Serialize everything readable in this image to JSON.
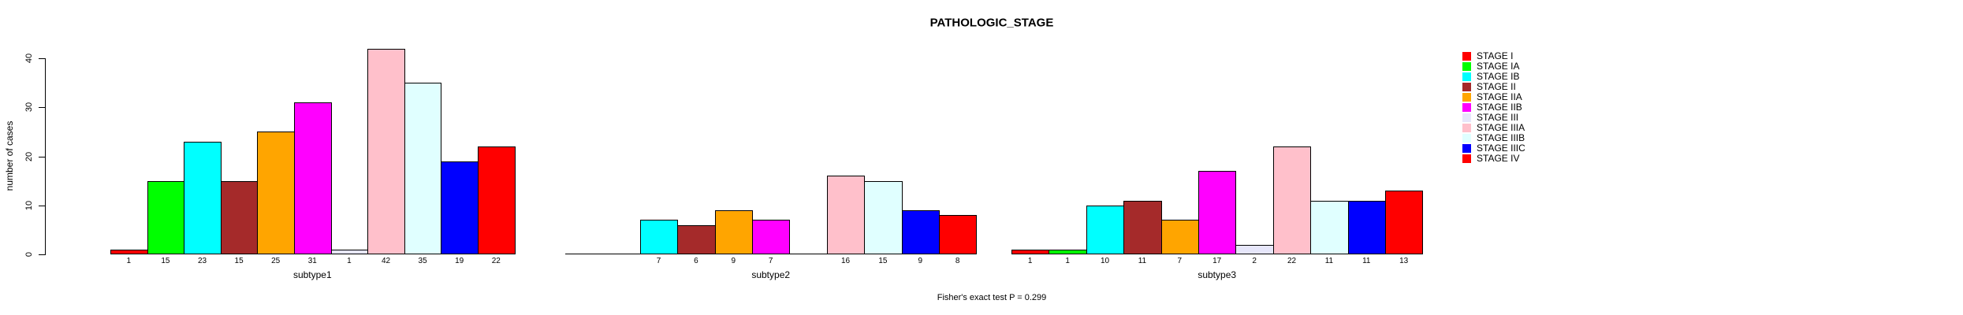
{
  "title": "PATHOLOGIC_STAGE",
  "footer": "Fisher's exact test P = 0.299",
  "chart_data": {
    "type": "bar",
    "title": "PATHOLOGIC_STAGE",
    "ylabel": "number of cases",
    "xlabel": "",
    "ylim": [
      0,
      40
    ],
    "yticks": [
      0,
      10,
      20,
      30,
      40
    ],
    "grid": false,
    "legend_position": "right",
    "annotation": "Fisher's exact test P = 0.299",
    "stages": [
      {
        "label": "STAGE I",
        "color": "#FF0000"
      },
      {
        "label": "STAGE IA",
        "color": "#00FF00"
      },
      {
        "label": "STAGE IB",
        "color": "#00FFFF"
      },
      {
        "label": "STAGE II",
        "color": "#A52A2A"
      },
      {
        "label": "STAGE IIA",
        "color": "#FFA500"
      },
      {
        "label": "STAGE IIB",
        "color": "#FF00FF"
      },
      {
        "label": "STAGE III",
        "color": "#E6E6FA"
      },
      {
        "label": "STAGE IIIA",
        "color": "#FFC0CB"
      },
      {
        "label": "STAGE IIIB",
        "color": "#E0FFFF"
      },
      {
        "label": "STAGE IIIC",
        "color": "#0000FF"
      },
      {
        "label": "STAGE IV",
        "color": "#FF0000"
      }
    ],
    "categories": [
      "subtype1",
      "subtype2",
      "subtype3"
    ],
    "series_note": "groups[i].values follow the order of stages[]; 0 means no visible bar and no printed count",
    "groups": [
      {
        "label": "subtype1",
        "values": [
          1,
          15,
          23,
          15,
          25,
          31,
          1,
          42,
          35,
          19,
          22
        ]
      },
      {
        "label": "subtype2",
        "values": [
          0,
          0,
          7,
          6,
          9,
          7,
          0,
          16,
          15,
          9,
          8
        ]
      },
      {
        "label": "subtype3",
        "values": [
          1,
          1,
          10,
          11,
          7,
          17,
          2,
          22,
          11,
          11,
          13
        ]
      }
    ]
  }
}
